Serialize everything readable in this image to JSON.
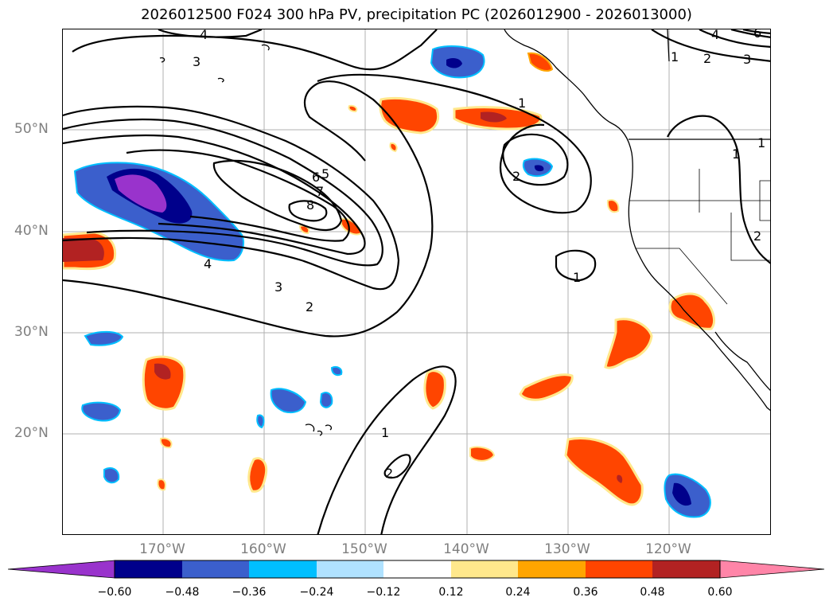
{
  "title": "2026012500 F024 300 hPa PV, precipitation PC (2026012900 - 2026013000)",
  "axes": {
    "lat_labels": [
      "50°N",
      "40°N",
      "30°N",
      "20°N"
    ],
    "lon_labels": [
      "170°W",
      "160°W",
      "150°W",
      "140°W",
      "130°W",
      "120°W"
    ]
  },
  "colorbar": {
    "ticks": [
      "−0.60",
      "−0.48",
      "−0.36",
      "−0.24",
      "−0.12",
      "0.12",
      "0.24",
      "0.36",
      "0.48",
      "0.60"
    ],
    "colors": [
      "#9933cc",
      "#00008b",
      "#3b5fcc",
      "#00bfff",
      "#b0e2ff",
      "#ffffff",
      "#ffe88c",
      "#ffa500",
      "#ff4500",
      "#b22222",
      "#ff85a8"
    ]
  },
  "contour_labels": {
    "c1": "4",
    "c2": "3",
    "c3": "4",
    "c4": "3",
    "c5": "2",
    "c6": "6",
    "c7": "5",
    "c8": "7",
    "c9": "8",
    "c10": "1",
    "c11": "2",
    "c12": "1",
    "c13": "2",
    "c14": "3",
    "c15": "4",
    "c16": "6",
    "c17": "1",
    "c18": "1",
    "c19": "1",
    "c20": "2",
    "c21": "1",
    "c22": "2"
  }
}
